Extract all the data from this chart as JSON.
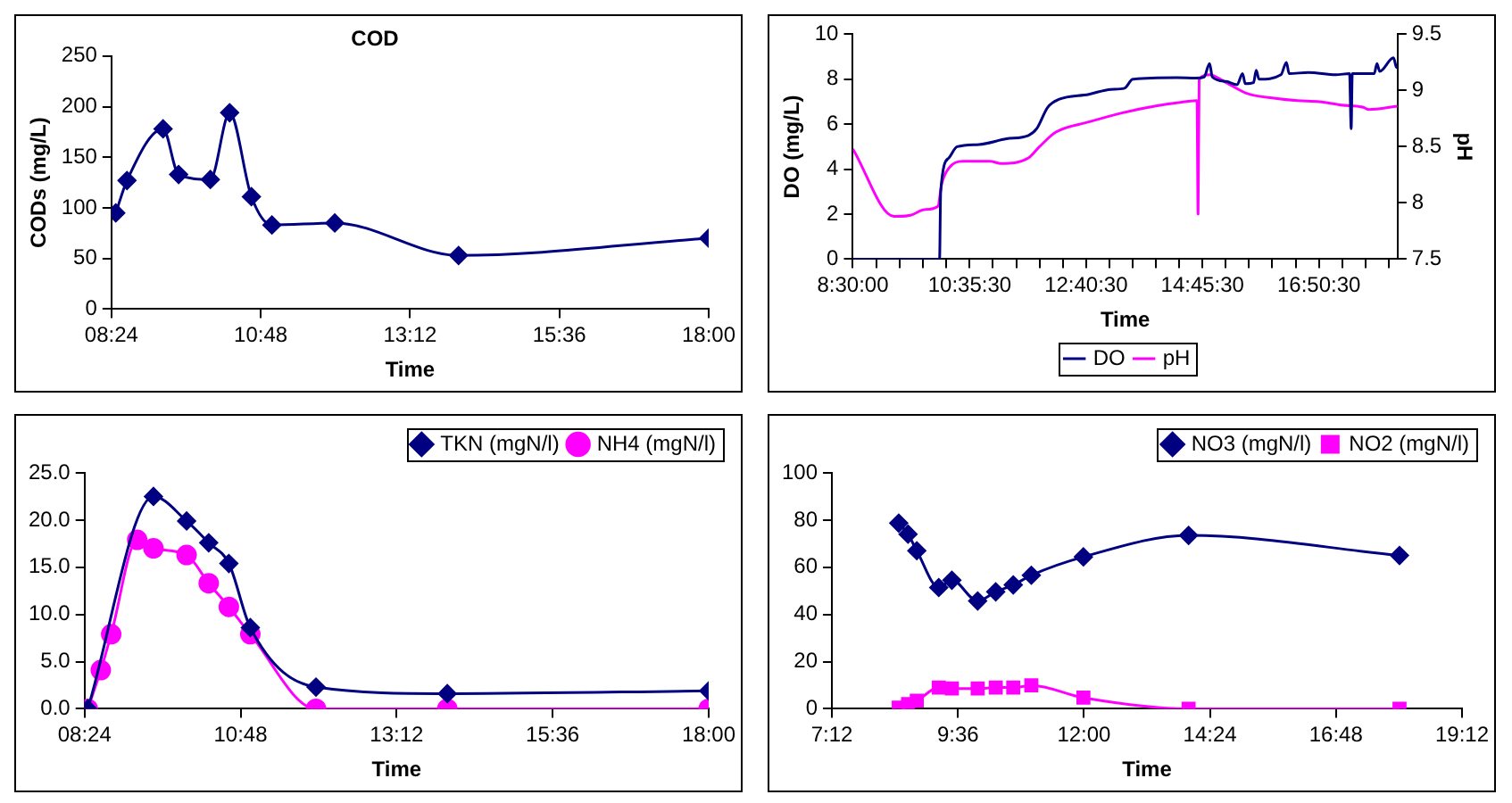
{
  "chart_data": [
    {
      "type": "line",
      "title": "COD",
      "xlabel": "Time",
      "ylabel": "CODs (mg/L)",
      "xlim": [
        8.4,
        18
      ],
      "xticks": [
        {
          "value": 8.4,
          "label": "08:24"
        },
        {
          "value": 10.8,
          "label": "10:48"
        },
        {
          "value": 13.2,
          "label": "13:12"
        },
        {
          "value": 15.6,
          "label": "15:36"
        },
        {
          "value": 18,
          "label": "18:00"
        }
      ],
      "ylim": [
        0,
        250
      ],
      "yticks": [
        0,
        50,
        100,
        150,
        200,
        250
      ],
      "grid": false,
      "legend": false,
      "marker": "diamond",
      "series": [
        {
          "color": "#000080",
          "x": [
            8.47,
            8.65,
            9.23,
            9.48,
            9.99,
            10.3,
            10.65,
            10.98,
            11.99,
            13.98,
            18
          ],
          "values": [
            95,
            127,
            178,
            133,
            128,
            194,
            111,
            83,
            85,
            53,
            70
          ]
        }
      ]
    },
    {
      "type": "line",
      "xlabel": "Time",
      "ylabel": "DO (mg/L)",
      "y2label": "pH",
      "xlim": [
        8.5,
        18.25
      ],
      "xticks": [
        {
          "value": 8.5,
          "label": "8:30:00"
        },
        {
          "value": 8.918,
          "label": null
        },
        {
          "value": 9.337,
          "label": null
        },
        {
          "value": 9.755,
          "label": null
        },
        {
          "value": 10.173,
          "label": null
        },
        {
          "value": 10.5917,
          "label": "10:35:30"
        },
        {
          "value": 11.008,
          "label": null
        },
        {
          "value": 11.425,
          "label": null
        },
        {
          "value": 11.842,
          "label": null
        },
        {
          "value": 12.258,
          "label": null
        },
        {
          "value": 12.675,
          "label": "12:40:30"
        },
        {
          "value": 13.092,
          "label": null
        },
        {
          "value": 13.508,
          "label": null
        },
        {
          "value": 13.925,
          "label": null
        },
        {
          "value": 14.342,
          "label": null
        },
        {
          "value": 14.7583,
          "label": "14:45:30"
        },
        {
          "value": 15.175,
          "label": null
        },
        {
          "value": 15.592,
          "label": null
        },
        {
          "value": 16.008,
          "label": null
        },
        {
          "value": 16.425,
          "label": null
        },
        {
          "value": 16.8417,
          "label": "16:50:30"
        },
        {
          "value": 17.258,
          "label": null
        },
        {
          "value": 17.675,
          "label": null
        },
        {
          "value": 18.092,
          "label": null
        }
      ],
      "ylim": [
        0,
        10
      ],
      "yticks": [
        0,
        2,
        4,
        6,
        8,
        10
      ],
      "y2lim": [
        7.5,
        9.5
      ],
      "y2ticks": [
        7.5,
        8,
        8.5,
        9,
        9.5
      ],
      "grid": false,
      "legend": "bottom",
      "marker": "none",
      "series": [
        {
          "name": "DO",
          "color": "#000080",
          "x": [
            8.5,
            10.052,
            10.072,
            10.219,
            10.366,
            10.759,
            11.25,
            11.643,
            11.791,
            11.987,
            12.184,
            12.724,
            13.117,
            13.362,
            13.51,
            14.296,
            14.64,
            14.787,
            14.885,
            14.934,
            15.18,
            15.376,
            15.475,
            15.524,
            15.671,
            15.72,
            15.769,
            16.162,
            16.26,
            16.309,
            16.653,
            17.144,
            17.39,
            17.419,
            17.439,
            17.832,
            17.881,
            17.93,
            18.176,
            18.225,
            18.25
          ],
          "values": [
            0,
            0,
            3,
            4.5,
            5.0,
            5.1,
            5.35,
            5.5,
            5.8,
            6.75,
            7.1,
            7.33,
            7.55,
            7.6,
            8.0,
            8.07,
            8.05,
            8.1,
            8.7,
            8.1,
            7.9,
            7.75,
            8.25,
            7.8,
            7.85,
            8.4,
            8.0,
            8.2,
            8.75,
            8.25,
            8.3,
            8.2,
            8.25,
            5.8,
            8.25,
            8.25,
            8.7,
            8.35,
            8.95,
            8.55,
            8.5
          ]
        },
        {
          "name": "pH",
          "color": "#ff00ff",
          "axis": "y2",
          "x": [
            8.5,
            9.237,
            9.531,
            9.777,
            10.023,
            10.091,
            10.219,
            10.465,
            10.956,
            11.152,
            11.643,
            11.84,
            12.135,
            12.724,
            13.313,
            13.903,
            14.296,
            14.659,
            14.679,
            14.698,
            14.885,
            15.18,
            15.573,
            16.064,
            16.457,
            16.85,
            17.243,
            17.635,
            17.734,
            18.25
          ],
          "values": [
            8.48,
            7.88,
            7.89,
            7.94,
            7.97,
            8.17,
            8.31,
            8.37,
            8.37,
            8.35,
            8.4,
            8.5,
            8.63,
            8.72,
            8.8,
            8.86,
            8.89,
            8.91,
            7.9,
            9.1,
            9.14,
            9.07,
            8.97,
            8.93,
            8.91,
            8.9,
            8.87,
            8.85,
            8.83,
            8.86
          ]
        }
      ]
    },
    {
      "type": "line",
      "xlabel": "Time",
      "xlim": [
        8.4,
        18
      ],
      "xticks": [
        {
          "value": 8.4,
          "label": "08:24"
        },
        {
          "value": 10.8,
          "label": "10:48"
        },
        {
          "value": 13.2,
          "label": "13:12"
        },
        {
          "value": 15.6,
          "label": "15:36"
        },
        {
          "value": 18,
          "label": "18:00"
        }
      ],
      "ylim": [
        0,
        25
      ],
      "yticks": [
        {
          "value": 0,
          "label": "0.0"
        },
        {
          "value": 5,
          "label": "5.0"
        },
        {
          "value": 10,
          "label": "10.0"
        },
        {
          "value": 15,
          "label": "15.0"
        },
        {
          "value": 20,
          "label": "20.0"
        },
        {
          "value": 25,
          "label": "25.0"
        }
      ],
      "grid": false,
      "legend": "top right",
      "series": [
        {
          "name": "TKN (mgN/l)",
          "color": "#000080",
          "marker": "diamond",
          "x": [
            8.45,
            8.65,
            8.81,
            9.21,
            9.46,
            9.97,
            10.31,
            10.62,
            10.95,
            11.96,
            13.98,
            18.0
          ],
          "values": [
            0,
            null,
            null,
            null,
            22.5,
            19.9,
            17.6,
            15.4,
            8.6,
            2.3,
            1.6,
            1.9
          ]
        },
        {
          "name": "NH4 (mgN/l)",
          "color": "#ff00ff",
          "marker": "circle",
          "x": [
            8.45,
            8.65,
            8.81,
            9.21,
            9.46,
            9.97,
            10.31,
            10.62,
            10.95,
            11.96,
            13.98,
            18.0
          ],
          "values": [
            0,
            4.1,
            7.9,
            17.9,
            17.0,
            16.3,
            13.3,
            10.8,
            7.9,
            0,
            0,
            0
          ]
        }
      ]
    },
    {
      "type": "line",
      "xlabel": "Time",
      "xlim": [
        7.2,
        19.2
      ],
      "xticks": [
        {
          "value": 7.2,
          "label": "7:12"
        },
        {
          "value": 9.6,
          "label": "9:36"
        },
        {
          "value": 12,
          "label": "12:00"
        },
        {
          "value": 14.4,
          "label": "14:24"
        },
        {
          "value": 16.8,
          "label": "16:48"
        },
        {
          "value": 19.2,
          "label": "19:12"
        }
      ],
      "ylim": [
        0,
        100
      ],
      "yticks": [
        0,
        20,
        40,
        60,
        80,
        100
      ],
      "grid": false,
      "legend": "top right",
      "series": [
        {
          "name": "NO3 (mgN/l)",
          "color": "#000080",
          "marker": "diamond",
          "x": [
            8.473,
            8.65,
            8.817,
            9.235,
            9.485,
            9.976,
            10.32,
            10.654,
            10.998,
            11.99,
            13.993,
            18.01
          ],
          "values": [
            78.7,
            74,
            67,
            51.4,
            54.5,
            45.7,
            49.6,
            52.5,
            56.6,
            64.4,
            73.5,
            65
          ]
        },
        {
          "name": "NO2 (mgN/l)",
          "color": "#ff00ff",
          "marker": "square",
          "x": [
            8.473,
            8.65,
            8.817,
            9.235,
            9.485,
            9.976,
            10.32,
            10.654,
            10.998,
            11.99,
            13.993,
            18.01
          ],
          "values": [
            0.5,
            2,
            3.4,
            9,
            8.6,
            8.6,
            9,
            9,
            9.9,
            4.7,
            0,
            0
          ]
        }
      ]
    }
  ]
}
